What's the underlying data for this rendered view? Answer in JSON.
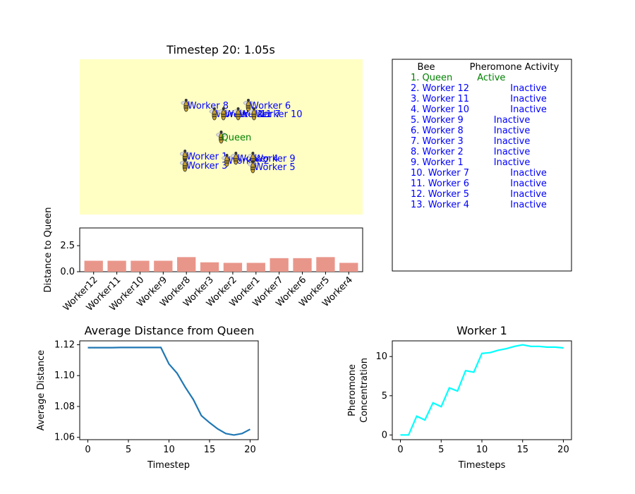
{
  "chart_data": [
    {
      "id": "sim",
      "type": "scatter",
      "title": "Timestep 20: 1.05s",
      "background_color": "#ffffc4",
      "xlim": [
        -2.5,
        2.5
      ],
      "ylim": [
        -2.2,
        2.2
      ],
      "queen": {
        "label": "Queen",
        "x": 0.0,
        "y": 0.0,
        "color": "#008000"
      },
      "workers": [
        {
          "label": "Worker 8",
          "x": -0.62,
          "y": 0.9
        },
        {
          "label": "Worker 6",
          "x": 0.48,
          "y": 0.9
        },
        {
          "label": "Worker 12",
          "x": -0.12,
          "y": 0.66
        },
        {
          "label": "Worker 11",
          "x": 0.04,
          "y": 0.66
        },
        {
          "label": "Worker 7",
          "x": 0.3,
          "y": 0.66
        },
        {
          "label": "Worker 10",
          "x": 0.58,
          "y": 0.66
        },
        {
          "label": "Worker 1",
          "x": -0.64,
          "y": -0.54
        },
        {
          "label": "Worker 3",
          "x": -0.64,
          "y": -0.8
        },
        {
          "label": "Worker 2",
          "x": 0.1,
          "y": -0.66
        },
        {
          "label": "Worker 4",
          "x": 0.26,
          "y": -0.6
        },
        {
          "label": "Worker 9",
          "x": 0.56,
          "y": -0.6
        },
        {
          "label": "Worker 5",
          "x": 0.56,
          "y": -0.84
        }
      ],
      "worker_color": "#0000ff"
    },
    {
      "id": "dist",
      "type": "bar",
      "ylabel": "Distance to Queen",
      "ylim": [
        0,
        4.2
      ],
      "yticks": [
        "0.0",
        "2.5"
      ],
      "bar_color": "#e9968a",
      "categories": [
        "Worker12",
        "Worker11",
        "Worker10",
        "Worker9",
        "Worker8",
        "Worker3",
        "Worker2",
        "Worker1",
        "Worker7",
        "Worker6",
        "Worker5",
        "Worker4"
      ],
      "values": [
        1.05,
        1.05,
        1.05,
        1.05,
        1.4,
        0.9,
        0.85,
        0.85,
        1.3,
        1.3,
        1.4,
        0.85
      ]
    },
    {
      "id": "avg",
      "type": "line",
      "title": "Average Distance from Queen",
      "xlabel": "Timestep",
      "ylabel": "Average Distance",
      "xlim": [
        -1,
        21
      ],
      "ylim": [
        1.0585,
        1.1225
      ],
      "xticks": [
        0,
        5,
        10,
        15,
        20
      ],
      "yticks": [
        "1.06",
        "1.08",
        "1.10",
        "1.12"
      ],
      "color": "#1f77b4",
      "x": [
        0,
        1,
        2,
        3,
        4,
        5,
        6,
        7,
        8,
        9,
        10,
        11,
        12,
        13,
        14,
        15,
        16,
        17,
        18,
        19,
        20
      ],
      "y": [
        1.1181,
        1.1181,
        1.1181,
        1.1181,
        1.1182,
        1.1182,
        1.1182,
        1.1182,
        1.1182,
        1.1182,
        1.1075,
        1.1015,
        1.0925,
        1.0845,
        1.074,
        1.0695,
        1.0655,
        1.0625,
        1.0615,
        1.0625,
        1.0652
      ]
    },
    {
      "id": "w1",
      "type": "line",
      "title": "Worker 1",
      "xlabel": "Timesteps",
      "ylabel": [
        "Pheromone",
        "Concentration"
      ],
      "xlim": [
        -1,
        21
      ],
      "ylim": [
        -0.6,
        12
      ],
      "xticks": [
        0,
        5,
        10,
        15,
        20
      ],
      "yticks": [
        0,
        5,
        10
      ],
      "color": "#00ffff",
      "x": [
        0,
        1,
        2,
        3,
        4,
        5,
        6,
        7,
        8,
        9,
        10,
        11,
        12,
        13,
        14,
        15,
        16,
        17,
        18,
        19,
        20
      ],
      "y": [
        0,
        0,
        2.4,
        1.9,
        4.1,
        3.6,
        6.0,
        5.6,
        8.2,
        8.0,
        10.4,
        10.5,
        10.8,
        11.0,
        11.3,
        11.5,
        11.3,
        11.3,
        11.2,
        11.2,
        11.1
      ]
    }
  ],
  "table": {
    "headers": [
      "Bee",
      "Pheromone Activity"
    ],
    "active_color": "#008000",
    "inactive_color": "#0000ff",
    "rows": [
      {
        "bee": "1. Queen",
        "status": "Active",
        "active": true
      },
      {
        "bee": "2. Worker 12",
        "status": "Inactive",
        "active": false
      },
      {
        "bee": "3. Worker 11",
        "status": "Inactive",
        "active": false
      },
      {
        "bee": "4. Worker 10",
        "status": "Inactive",
        "active": false
      },
      {
        "bee": "5. Worker 9",
        "status": "Inactive",
        "active": false
      },
      {
        "bee": "6. Worker 8",
        "status": "Inactive",
        "active": false
      },
      {
        "bee": "7. Worker 3",
        "status": "Inactive",
        "active": false
      },
      {
        "bee": "8. Worker 2",
        "status": "Inactive",
        "active": false
      },
      {
        "bee": "9. Worker 1",
        "status": "Inactive",
        "active": false
      },
      {
        "bee": "10. Worker 7",
        "status": "Inactive",
        "active": false
      },
      {
        "bee": "11. Worker 6",
        "status": "Inactive",
        "active": false
      },
      {
        "bee": "12. Worker 5",
        "status": "Inactive",
        "active": false
      },
      {
        "bee": "13. Worker 4",
        "status": "Inactive",
        "active": false
      }
    ]
  }
}
